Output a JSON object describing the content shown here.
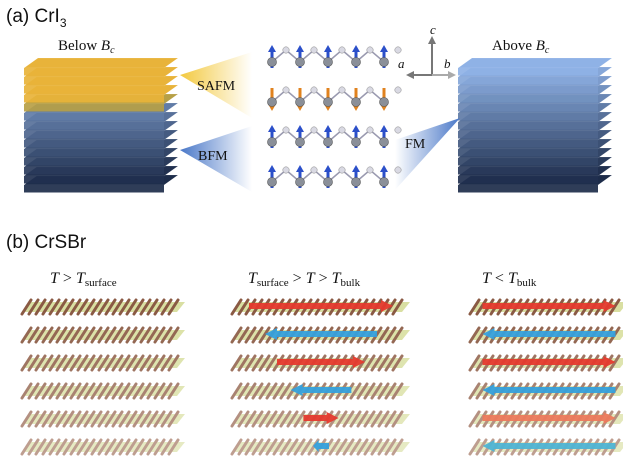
{
  "panel_a": {
    "label_prefix": "(a) ",
    "material_base": "CrI",
    "material_sub": "3",
    "below_text": "Below ",
    "above_text": "Above ",
    "field_symbol": "B",
    "field_sub": "c",
    "transitions": [
      "SAFM",
      "BFM",
      "FM"
    ],
    "axes": {
      "a": "a",
      "b": "b",
      "c": "c"
    }
  },
  "panel_b": {
    "label_prefix": "(b) ",
    "material": "CrSBr",
    "conditions": [
      {
        "t": "T",
        "op": " > ",
        "t2": "T",
        "sub2": "surface",
        "sub1": "",
        "op2": "",
        "t3": "",
        "sub3": ""
      },
      {
        "t": "T",
        "sub1": "surface",
        "op": " > ",
        "t2": "T",
        "sub2": "",
        "op2": " > ",
        "t3": "T",
        "sub3": "bulk"
      },
      {
        "t": "T",
        "op": " < ",
        "t2": "T",
        "sub2": "bulk",
        "sub1": "",
        "op2": "",
        "t3": "",
        "sub3": ""
      }
    ]
  },
  "colors": {
    "afm_layer": "#e8b33a",
    "fm_layer_top": "#8fb2e6",
    "fm_layer_bottom": "#1d2c4a",
    "spin_up": "#2b4fc9",
    "spin_down": "#e0821e",
    "arrow_red": "#e53a2e",
    "arrow_blue": "#35a0dc",
    "arrow_orange": "#ec7a5c",
    "arrow_cyan": "#4fb4d4",
    "layer_brown": "#8a5a44",
    "layer_green": "#c9d27a"
  },
  "stack_columns": [
    {
      "arrows": []
    },
    {
      "arrows": [
        {
          "dir": "right",
          "color": "arrow_red",
          "len": 0.9
        },
        {
          "dir": "left",
          "color": "arrow_blue",
          "len": 0.7
        },
        {
          "dir": "right",
          "color": "arrow_red",
          "len": 0.55
        },
        {
          "dir": "left",
          "color": "arrow_blue",
          "len": 0.38
        },
        {
          "dir": "right",
          "color": "arrow_red",
          "len": 0.22
        },
        {
          "dir": "left",
          "color": "arrow_blue",
          "len": 0.1
        }
      ]
    },
    {
      "arrows": [
        {
          "dir": "right",
          "color": "arrow_red",
          "len": 0.95
        },
        {
          "dir": "left",
          "color": "arrow_blue",
          "len": 0.95
        },
        {
          "dir": "right",
          "color": "arrow_red",
          "len": 0.95
        },
        {
          "dir": "left",
          "color": "arrow_blue",
          "len": 0.95
        },
        {
          "dir": "right",
          "color": "arrow_orange",
          "len": 0.95
        },
        {
          "dir": "left",
          "color": "arrow_cyan",
          "len": 0.95
        }
      ]
    }
  ]
}
